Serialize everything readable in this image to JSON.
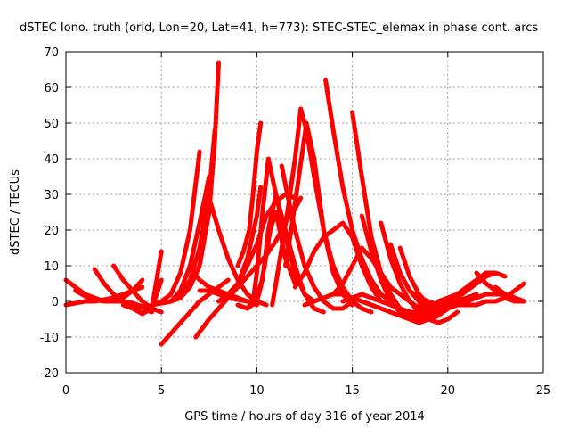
{
  "chart_data": {
    "type": "line",
    "title": "dSTEC Iono. truth (orid, Lon=20, Lat=41, h=773): STEC-STEC_elemax in phase cont. arcs",
    "xlabel": "GPS time / hours of day 316 of year 2014",
    "ylabel": "dSTEC  / TECUs",
    "xlim": [
      0,
      25
    ],
    "ylim": [
      -20,
      70
    ],
    "xticks": [
      "0",
      "5",
      "10",
      "15",
      "20",
      "25"
    ],
    "yticks": [
      "-20",
      "-10",
      "0",
      "10",
      "20",
      "30",
      "40",
      "50",
      "60",
      "70"
    ],
    "grid": true,
    "color": "#ff0000",
    "series": [
      {
        "x": [
          0,
          0.5,
          1.0,
          1.5,
          2.0
        ],
        "y": [
          6,
          4,
          2,
          1,
          0
        ]
      },
      {
        "x": [
          0,
          0.5,
          1.0,
          1.5,
          2.0,
          2.5,
          3.0,
          3.5,
          4.0
        ],
        "y": [
          -1,
          -0.5,
          0,
          0,
          0.5,
          1,
          2,
          3,
          4
        ]
      },
      {
        "x": [
          0.5,
          1.0,
          1.5,
          2.0,
          2.5,
          3.0,
          3.5,
          4.0
        ],
        "y": [
          3,
          1.5,
          0.5,
          0,
          0,
          1,
          3,
          6
        ]
      },
      {
        "x": [
          1.5,
          2.0,
          2.5,
          3.0,
          3.5,
          4.0,
          4.5
        ],
        "y": [
          9,
          5,
          2,
          0,
          -1,
          -2,
          -3
        ]
      },
      {
        "x": [
          2.5,
          3.0,
          3.5,
          4.0,
          4.5,
          5.0
        ],
        "y": [
          10,
          6,
          3,
          0,
          -2,
          -3
        ]
      },
      {
        "x": [
          2.0,
          2.5,
          3.0,
          3.5,
          4.0,
          4.5,
          5.0
        ],
        "y": [
          0,
          0,
          0,
          -0.5,
          -1.5,
          -2,
          6
        ]
      },
      {
        "x": [
          3.0,
          3.5,
          4.0,
          4.5,
          5.0
        ],
        "y": [
          -1,
          -2,
          -3.5,
          -2,
          14
        ]
      },
      {
        "x": [
          4.0,
          4.5,
          5.0,
          5.5,
          6.0,
          6.5,
          7.0
        ],
        "y": [
          -2,
          -1,
          0,
          2,
          8,
          20,
          42
        ]
      },
      {
        "x": [
          4.5,
          5.0,
          5.5,
          6.0,
          6.5,
          7.0,
          7.5
        ],
        "y": [
          -1,
          -0.5,
          0,
          3,
          10,
          22,
          35
        ]
      },
      {
        "x": [
          5.0,
          5.5,
          6.0,
          6.5,
          7.0,
          7.5,
          7.8
        ],
        "y": [
          -0.5,
          0,
          2,
          6,
          15,
          30,
          48
        ]
      },
      {
        "x": [
          5.5,
          6.0,
          6.5,
          7.0,
          7.5,
          7.8,
          8.0
        ],
        "y": [
          0,
          1,
          4,
          10,
          25,
          45,
          67
        ]
      },
      {
        "x": [
          5.0,
          5.5,
          6.0,
          6.5,
          7.0,
          7.5,
          8.0,
          8.5
        ],
        "y": [
          -12,
          -9,
          -6,
          -3,
          0,
          2,
          4,
          6
        ]
      },
      {
        "x": [
          6.8,
          7.5,
          8.0,
          8.5,
          9.0,
          9.5,
          10.0,
          10.5,
          11.0,
          11.5,
          12.0,
          12.3
        ],
        "y": [
          -10,
          -5,
          -2,
          1,
          4,
          7,
          10,
          13,
          17,
          22,
          26,
          29
        ]
      },
      {
        "x": [
          6.5,
          7.0,
          7.5,
          8.0,
          8.5,
          9.0,
          9.5,
          10.0
        ],
        "y": [
          9,
          6,
          4,
          3,
          2,
          1,
          0,
          -1
        ]
      },
      {
        "x": [
          7.5,
          8.0,
          8.5,
          9.0,
          9.5,
          10.0,
          10.5
        ],
        "y": [
          29,
          20,
          12,
          6,
          2,
          0,
          -1
        ]
      },
      {
        "x": [
          7.0,
          7.5,
          8.0,
          8.5,
          9.0,
          9.5,
          10.0
        ],
        "y": [
          3,
          3,
          2,
          1,
          0.5,
          0,
          0
        ]
      },
      {
        "x": [
          8.0,
          8.5,
          9.0,
          9.5,
          10.0,
          10.5,
          11.0,
          11.5,
          12.0
        ],
        "y": [
          0,
          2,
          5,
          10,
          16,
          24,
          28,
          30,
          29
        ]
      },
      {
        "x": [
          8.5,
          9.0,
          9.5,
          10.0,
          10.2
        ],
        "y": [
          2,
          5,
          12,
          24,
          32
        ]
      },
      {
        "x": [
          9.0,
          9.5,
          10.0,
          10.2,
          10.4,
          10.7,
          11.0,
          11.5,
          12.0
        ],
        "y": [
          -1,
          -2,
          0,
          4,
          10,
          20,
          25,
          12,
          5
        ]
      },
      {
        "x": [
          9.0,
          9.3,
          9.6,
          9.8,
          10.0,
          10.2
        ],
        "y": [
          10,
          14,
          20,
          30,
          42,
          50
        ]
      },
      {
        "x": [
          9.5,
          9.8,
          10.0,
          10.3,
          10.6,
          11.0,
          11.5,
          12.0,
          12.5,
          13.0,
          13.5
        ],
        "y": [
          -2,
          0,
          8,
          25,
          40,
          30,
          20,
          10,
          2,
          -2,
          -3
        ]
      },
      {
        "x": [
          10.0,
          10.3,
          10.6,
          11.0,
          11.5,
          12.0,
          12.5,
          13.0
        ],
        "y": [
          2,
          6,
          20,
          30,
          18,
          8,
          2,
          0
        ]
      },
      {
        "x": [
          10.8,
          11.0,
          11.3,
          11.6,
          12.0,
          12.3
        ],
        "y": [
          -1,
          5,
          15,
          25,
          40,
          54
        ]
      },
      {
        "x": [
          11.3,
          11.6,
          12.0,
          12.5,
          13.0,
          13.5,
          14.0,
          14.5,
          15.0
        ],
        "y": [
          38,
          30,
          20,
          10,
          4,
          0,
          -2,
          -2,
          0
        ]
      },
      {
        "x": [
          11.5,
          11.8,
          12.2,
          12.6,
          13.0,
          13.5,
          14.0,
          14.5,
          15.0
        ],
        "y": [
          10,
          20,
          35,
          50,
          40,
          20,
          8,
          2,
          -1
        ]
      },
      {
        "x": [
          12.3,
          12.6,
          13.0,
          13.5,
          14.0,
          14.5,
          15.0,
          15.5,
          16.0
        ],
        "y": [
          54,
          48,
          35,
          20,
          10,
          4,
          0,
          -2,
          -3
        ]
      },
      {
        "x": [
          12.0,
          12.5,
          13.0,
          13.5,
          14.0,
          14.5,
          15.0,
          15.5,
          16.0,
          16.5
        ],
        "y": [
          4,
          8,
          14,
          18,
          20,
          22,
          18,
          10,
          4,
          0
        ]
      },
      {
        "x": [
          12.5,
          13.0,
          13.5,
          14.0,
          14.5,
          15.0,
          15.5,
          16.0,
          16.5,
          17.0,
          17.5,
          18.0
        ],
        "y": [
          -1,
          0,
          1,
          2,
          2,
          1,
          0,
          -1,
          -2,
          -3,
          -4,
          -5
        ]
      },
      {
        "x": [
          13.6,
          14.0,
          14.5,
          15.0,
          15.5,
          16.0,
          16.5,
          17.0,
          17.5,
          18.0,
          18.5
        ],
        "y": [
          62,
          48,
          32,
          20,
          12,
          6,
          2,
          0,
          -2,
          -3,
          -3
        ]
      },
      {
        "x": [
          14.0,
          14.5,
          15.0,
          15.5,
          16.0,
          16.5,
          17.0,
          17.5,
          18.0,
          18.5,
          19.0
        ],
        "y": [
          2,
          5,
          10,
          15,
          12,
          8,
          4,
          2,
          0,
          -2,
          -3
        ]
      },
      {
        "x": [
          15.0,
          15.5,
          16.0,
          16.5,
          17.0,
          17.5,
          18.0,
          18.5,
          19.0,
          19.5
        ],
        "y": [
          53,
          35,
          18,
          8,
          2,
          -2,
          -4,
          -5,
          -5,
          -3
        ]
      },
      {
        "x": [
          14.5,
          15.0,
          15.5,
          16.0,
          16.5,
          17.0,
          17.5,
          18.0,
          18.5,
          19.0,
          19.5,
          20.0
        ],
        "y": [
          0,
          1,
          2,
          1,
          0,
          -1,
          -2,
          -3,
          -4,
          -3,
          -2,
          -1
        ]
      },
      {
        "x": [
          15.5,
          16.0,
          16.5,
          17.0,
          17.5,
          18.0,
          18.5,
          19.0,
          19.5,
          20.0
        ],
        "y": [
          24,
          14,
          6,
          0,
          -3,
          -5,
          -6,
          -5,
          -4,
          -2
        ]
      },
      {
        "x": [
          16.5,
          17.0,
          17.5,
          18.0,
          18.5,
          19.0,
          19.5,
          20.0,
          20.5
        ],
        "y": [
          22,
          12,
          5,
          0,
          -3,
          -5,
          -6,
          -5,
          -3
        ]
      },
      {
        "x": [
          17.0,
          17.5,
          18.0,
          18.5,
          19.0,
          19.5,
          20.0,
          20.5,
          21.0
        ],
        "y": [
          16,
          8,
          3,
          0,
          -2,
          -3,
          -2,
          -1,
          0
        ]
      },
      {
        "x": [
          17.5,
          18.0,
          18.5,
          19.0,
          19.5,
          20.0,
          20.5,
          21.0
        ],
        "y": [
          15,
          7,
          2,
          -1,
          -2,
          -1,
          0,
          1
        ]
      },
      {
        "x": [
          18.0,
          18.5,
          19.0,
          19.5,
          20.0,
          20.5,
          21.0,
          21.5
        ],
        "y": [
          3,
          1,
          0,
          -1,
          -1,
          0,
          1,
          2
        ]
      },
      {
        "x": [
          18.5,
          19.0,
          19.5,
          20.0,
          20.5,
          21.0,
          21.5,
          22.0,
          22.5
        ],
        "y": [
          -1,
          -2,
          -1,
          0,
          1,
          3,
          5,
          7,
          8
        ]
      },
      {
        "x": [
          19.0,
          19.5,
          20.0,
          20.5,
          21.0,
          21.5,
          22.0
        ],
        "y": [
          -4,
          -2,
          0,
          2,
          4,
          6,
          8
        ]
      },
      {
        "x": [
          19.5,
          20.0,
          20.5,
          21.0,
          21.5,
          22.0,
          22.5,
          23.0
        ],
        "y": [
          0,
          1,
          2,
          4,
          6,
          8,
          8,
          7
        ]
      },
      {
        "x": [
          20.0,
          20.5,
          21.0,
          21.5,
          22.0,
          22.5,
          23.0,
          23.5,
          24.0
        ],
        "y": [
          0,
          0,
          0,
          1,
          2,
          2,
          2,
          1,
          0
        ]
      },
      {
        "x": [
          20.5,
          21.0,
          21.5,
          22.0,
          22.5,
          23.0,
          23.5,
          24.0
        ],
        "y": [
          -1,
          -1,
          -1,
          0,
          0,
          1,
          3,
          5
        ]
      },
      {
        "x": [
          21.5,
          22.0,
          22.5,
          23.0,
          23.5,
          24.0
        ],
        "y": [
          8,
          5,
          3,
          1,
          0,
          0
        ]
      },
      {
        "x": [
          22.5,
          23.0,
          23.5,
          24.0
        ],
        "y": [
          4,
          2,
          1,
          0
        ]
      }
    ]
  }
}
